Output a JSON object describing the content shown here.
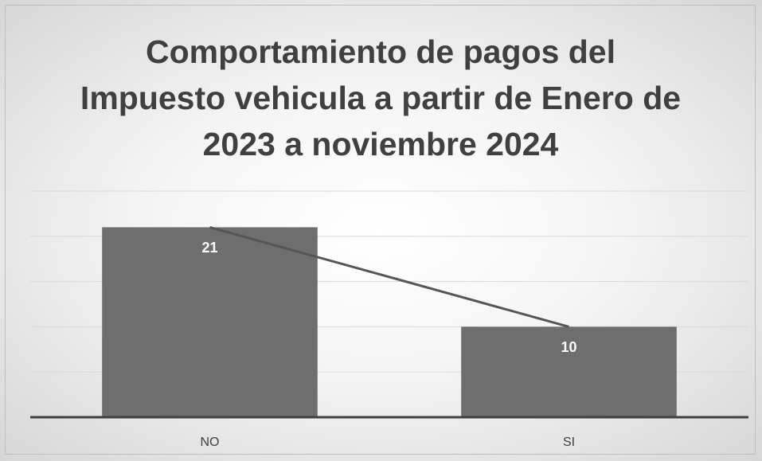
{
  "chart_data": {
    "type": "bar",
    "title": "Comportamiento de pagos del Impuesto vehicula a partir de Enero de 2023 a noviembre 2024",
    "categories": [
      "NO",
      "SI"
    ],
    "series": [
      {
        "type": "bar",
        "color": "#6e6e6e",
        "values": [
          21,
          10
        ]
      },
      {
        "type": "line",
        "color": "#555555",
        "values": [
          21,
          10
        ]
      }
    ],
    "ylim": [
      0,
      25
    ],
    "yticks": [
      0,
      5,
      10,
      15,
      20,
      25
    ],
    "grid": true
  }
}
